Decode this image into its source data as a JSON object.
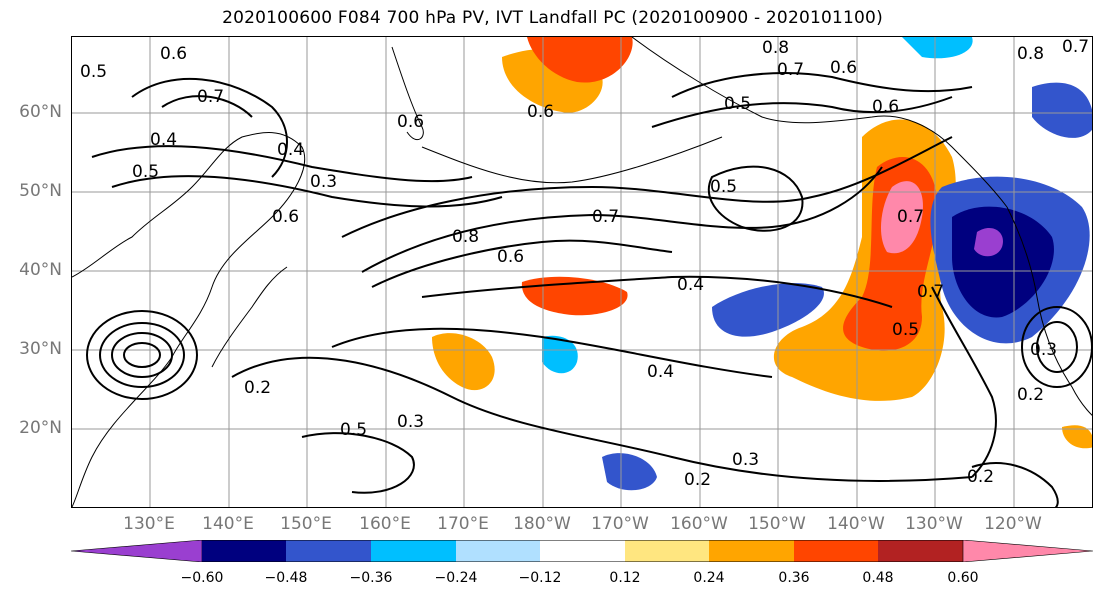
{
  "title": "2020100600 F084 700 hPa PV, IVT Landfall PC (2020100900 - 2020101100)",
  "lat_labels": [
    "60°N",
    "50°N",
    "40°N",
    "30°N",
    "20°N"
  ],
  "lon_labels": [
    "130°E",
    "140°E",
    "150°E",
    "160°E",
    "170°E",
    "180°W",
    "170°W",
    "160°W",
    "150°W",
    "140°W",
    "130°W",
    "120°W"
  ],
  "colorbar": {
    "colors": [
      "#9a3fd0",
      "#00007f",
      "#3355cc",
      "#00bfff",
      "#b0e0ff",
      "#ffffff",
      "#ffe680",
      "#ffa500",
      "#ff4500",
      "#b22222",
      "#ff88aa"
    ],
    "tick_labels": [
      "−0.60",
      "−0.48",
      "−0.36",
      "−0.24",
      "−0.12",
      "0.12",
      "0.24",
      "0.36",
      "0.48",
      "0.60"
    ]
  },
  "contour_labels": [
    {
      "text": "0.6"
    },
    {
      "text": "0.5"
    },
    {
      "text": "0.7"
    },
    {
      "text": "0.4"
    },
    {
      "text": "0.4"
    },
    {
      "text": "0.3"
    },
    {
      "text": "0.6"
    },
    {
      "text": "0.5"
    },
    {
      "text": "0.6"
    },
    {
      "text": "0.8"
    },
    {
      "text": "0.6"
    },
    {
      "text": "0.7"
    },
    {
      "text": "0.4"
    },
    {
      "text": "0.2"
    },
    {
      "text": "0.5"
    },
    {
      "text": "0.3"
    },
    {
      "text": "0.4"
    },
    {
      "text": "0.3"
    },
    {
      "text": "0.2"
    },
    {
      "text": "0.5"
    },
    {
      "text": "0.7"
    },
    {
      "text": "0.6"
    },
    {
      "text": "0.8"
    },
    {
      "text": "0.7"
    },
    {
      "text": "0.6"
    },
    {
      "text": "0.6"
    },
    {
      "text": "0.5"
    },
    {
      "text": "0.7"
    },
    {
      "text": "0.7"
    },
    {
      "text": "0.5"
    },
    {
      "text": "0.2"
    },
    {
      "text": "0.2"
    },
    {
      "text": "0.8"
    },
    {
      "text": "0.3"
    }
  ]
}
